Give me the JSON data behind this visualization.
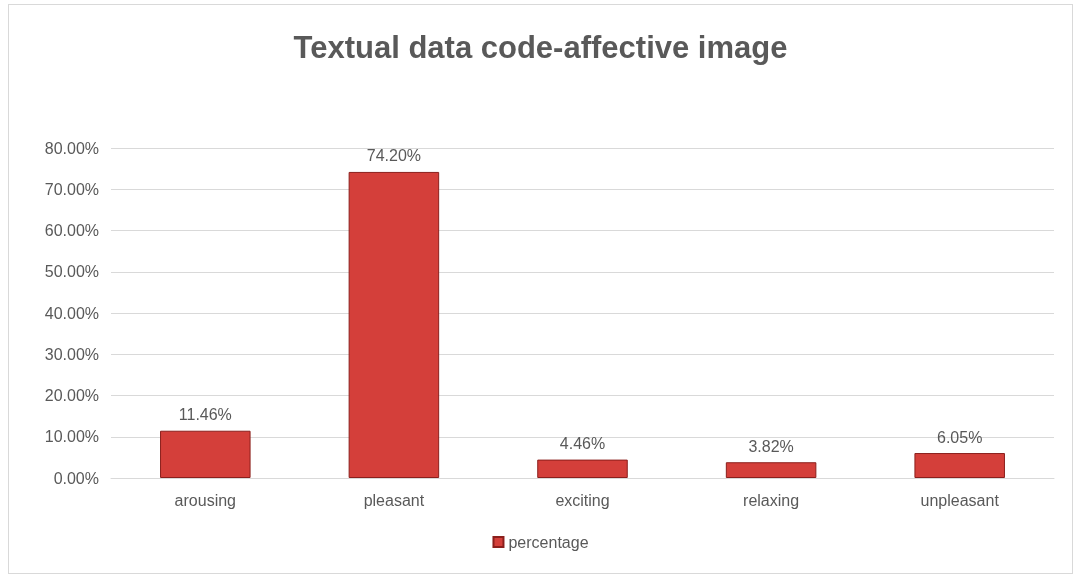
{
  "chart_data": {
    "type": "bar",
    "title": "Textual data code-affective image",
    "categories": [
      "arousing",
      "pleasant",
      "exciting",
      "relaxing",
      "unpleasant"
    ],
    "series": [
      {
        "name": "percentage",
        "color": "#d43f3a",
        "values": [
          11.46,
          74.2,
          4.46,
          3.82,
          6.05
        ],
        "value_labels": [
          "11.46%",
          "74.20%",
          "4.46%",
          "3.82%",
          "6.05%"
        ]
      }
    ],
    "ylim": [
      0,
      80
    ],
    "yticks": [
      {
        "value": 0,
        "label": "0.00%"
      },
      {
        "value": 10,
        "label": "10.00%"
      },
      {
        "value": 20,
        "label": "20.00%"
      },
      {
        "value": 30,
        "label": "30.00%"
      },
      {
        "value": 40,
        "label": "40.00%"
      },
      {
        "value": 50,
        "label": "50.00%"
      },
      {
        "value": 60,
        "label": "60.00%"
      },
      {
        "value": 70,
        "label": "70.00%"
      },
      {
        "value": 80,
        "label": "80.00%"
      }
    ],
    "grid": "y",
    "legend": "bottom"
  }
}
